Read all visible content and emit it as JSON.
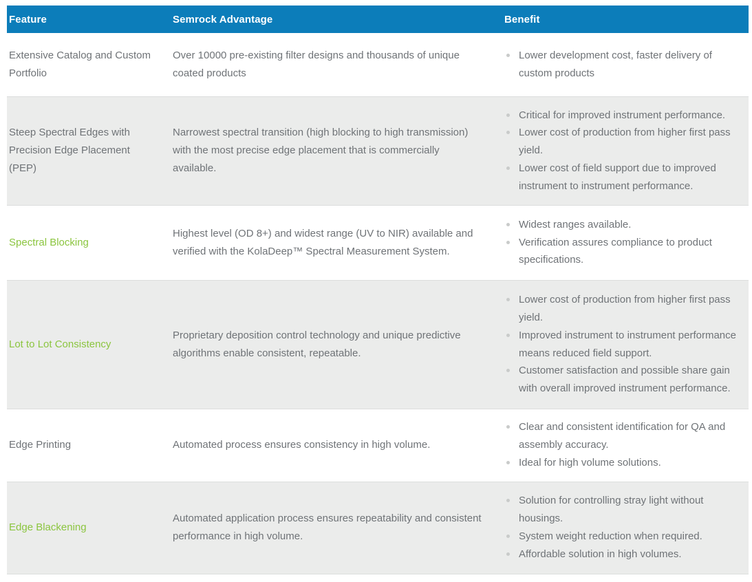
{
  "table": {
    "columns": [
      {
        "label": "Feature"
      },
      {
        "label": "Semrock Advantage"
      },
      {
        "label": "Benefit"
      }
    ],
    "rows": [
      {
        "feature": "Extensive Catalog and Custom Portfolio",
        "feature_green": false,
        "advantage": "Over 10000 pre-existing filter designs and thousands of unique coated products",
        "benefits": [
          "Lower development cost, faster delivery of custom products"
        ]
      },
      {
        "feature": "Steep Spectral Edges with Precision Edge Placement (PEP)",
        "feature_green": false,
        "advantage": "Narrowest spectral transition (high blocking to high transmission) with the most precise edge placement that is commercially available.",
        "benefits": [
          "Critical for improved instrument performance.",
          "Lower cost of production from higher first pass yield.",
          "Lower cost of field support due to improved instrument to instrument performance."
        ]
      },
      {
        "feature": "Spectral Blocking",
        "feature_green": true,
        "advantage": "Highest level (OD 8+) and widest range (UV to NIR) available and verified with the KolaDeep™ Spectral Measurement System.",
        "benefits": [
          "Widest ranges available.",
          "Verification assures compliance to product specifications."
        ]
      },
      {
        "feature": "Lot to Lot Consistency",
        "feature_green": true,
        "advantage": "Proprietary deposition control technology and unique predictive algorithms enable consistent, repeatable.",
        "benefits": [
          "Lower cost of production from higher first pass yield.",
          "Improved instrument to instrument performance means reduced field support.",
          "Customer satisfaction and possible share gain with overall improved instrument performance."
        ]
      },
      {
        "feature": "Edge Printing",
        "feature_green": false,
        "advantage": "Automated process ensures consistency in high volume.",
        "benefits": [
          "Clear and consistent identification for QA and assembly accuracy.",
          "Ideal for high volume solutions."
        ]
      },
      {
        "feature": "Edge Blackening",
        "feature_green": true,
        "advantage": "Automated application process ensures repeatability and consistent performance in high volume.",
        "benefits": [
          "Solution for controlling stray light without housings.",
          "System weight reduction when required.",
          "Affordable solution in high volumes."
        ]
      }
    ],
    "colors": {
      "header_bg": "#0c7dba",
      "header_text": "#ffffff",
      "body_text": "#6f7377",
      "green_feature": "#8bc53f",
      "alt_row_bg": "#ebeceb",
      "bullet": "#c9cbca",
      "row_border": "#dcdedd"
    }
  }
}
